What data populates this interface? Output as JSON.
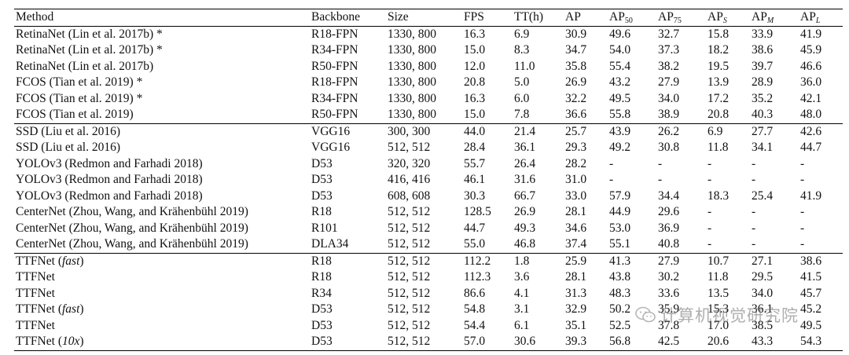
{
  "table": {
    "columns": [
      "Method",
      "Backbone",
      "Size",
      "FPS",
      "TT(h)",
      "AP",
      "AP50",
      "AP75",
      "APS",
      "APM",
      "APL"
    ],
    "header": {
      "method": "Method",
      "backbone": "Backbone",
      "size": "Size",
      "fps": "FPS",
      "tt": "TT(h)",
      "ap": "AP",
      "ap50": {
        "base": "AP",
        "sub": "50"
      },
      "ap75": {
        "base": "AP",
        "sub": "75"
      },
      "aps": {
        "base": "AP",
        "sub": "S"
      },
      "apm": {
        "base": "AP",
        "sub": "M"
      },
      "apl": {
        "base": "AP",
        "sub": "L"
      }
    },
    "groups": [
      [
        {
          "method": "RetinaNet (Lin et al. 2017b) *",
          "backbone": "R18-FPN",
          "size": "1330, 800",
          "fps": "16.3",
          "tt": "6.9",
          "ap": "30.9",
          "ap50": "49.6",
          "ap75": "32.7",
          "aps": "15.8",
          "apm": "33.9",
          "apl": "41.9"
        },
        {
          "method": "RetinaNet (Lin et al. 2017b) *",
          "backbone": "R34-FPN",
          "size": "1330, 800",
          "fps": "15.0",
          "tt": "8.3",
          "ap": "34.7",
          "ap50": "54.0",
          "ap75": "37.3",
          "aps": "18.2",
          "apm": "38.6",
          "apl": "45.9"
        },
        {
          "method": "RetinaNet (Lin et al. 2017b)",
          "backbone": "R50-FPN",
          "size": "1330, 800",
          "fps": "12.0",
          "tt": "11.0",
          "ap": "35.8",
          "ap50": "55.4",
          "ap75": "38.2",
          "aps": "19.5",
          "apm": "39.7",
          "apl": "46.6"
        },
        {
          "method": "FCOS (Tian et al. 2019) *",
          "backbone": "R18-FPN",
          "size": "1330, 800",
          "fps": "20.8",
          "tt": "5.0",
          "ap": "26.9",
          "ap50": "43.2",
          "ap75": "27.9",
          "aps": "13.9",
          "apm": "28.9",
          "apl": "36.0"
        },
        {
          "method": "FCOS (Tian et al. 2019) *",
          "backbone": "R34-FPN",
          "size": "1330, 800",
          "fps": "16.3",
          "tt": "6.0",
          "ap": "32.2",
          "ap50": "49.5",
          "ap75": "34.0",
          "aps": "17.2",
          "apm": "35.2",
          "apl": "42.1"
        },
        {
          "method": "FCOS (Tian et al. 2019)",
          "backbone": "R50-FPN",
          "size": "1330, 800",
          "fps": "15.0",
          "tt": "7.8",
          "ap": "36.6",
          "ap50": "55.8",
          "ap75": "38.9",
          "aps": "20.8",
          "apm": "40.3",
          "apl": "48.0"
        }
      ],
      [
        {
          "method": "SSD (Liu et al. 2016)",
          "backbone": "VGG16",
          "size": "300, 300",
          "fps": "44.0",
          "tt": "21.4",
          "ap": "25.7",
          "ap50": "43.9",
          "ap75": "26.2",
          "aps": "6.9",
          "apm": "27.7",
          "apl": "42.6"
        },
        {
          "method": "SSD (Liu et al. 2016)",
          "backbone": "VGG16",
          "size": "512, 512",
          "fps": "28.4",
          "tt": "36.1",
          "ap": "29.3",
          "ap50": "49.2",
          "ap75": "30.8",
          "aps": "11.8",
          "apm": "34.1",
          "apl": "44.7"
        },
        {
          "method": "YOLOv3 (Redmon and Farhadi 2018)",
          "backbone": "D53",
          "size": "320, 320",
          "fps": "55.7",
          "tt": "26.4",
          "ap": "28.2",
          "ap50": "-",
          "ap75": "-",
          "aps": "-",
          "apm": "-",
          "apl": "-"
        },
        {
          "method": "YOLOv3 (Redmon and Farhadi 2018)",
          "backbone": "D53",
          "size": "416, 416",
          "fps": "46.1",
          "tt": "31.6",
          "ap": "31.0",
          "ap50": "-",
          "ap75": "-",
          "aps": "-",
          "apm": "-",
          "apl": "-"
        },
        {
          "method": "YOLOv3 (Redmon and Farhadi 2018)",
          "backbone": "D53",
          "size": "608, 608",
          "fps": "30.3",
          "tt": "66.7",
          "ap": "33.0",
          "ap50": "57.9",
          "ap75": "34.4",
          "aps": "18.3",
          "apm": "25.4",
          "apl": "41.9"
        },
        {
          "method": "CenterNet (Zhou, Wang, and Krähenbühl 2019)",
          "backbone": "R18",
          "size": "512, 512",
          "fps": "128.5",
          "tt": "26.9",
          "ap": "28.1",
          "ap50": "44.9",
          "ap75": "29.6",
          "aps": "-",
          "apm": "-",
          "apl": "-"
        },
        {
          "method": "CenterNet (Zhou, Wang, and Krähenbühl 2019)",
          "backbone": "R101",
          "size": "512, 512",
          "fps": "44.7",
          "tt": "49.3",
          "ap": "34.6",
          "ap50": "53.0",
          "ap75": "36.9",
          "aps": "-",
          "apm": "-",
          "apl": "-"
        },
        {
          "method": "CenterNet (Zhou, Wang, and Krähenbühl 2019)",
          "backbone": "DLA34",
          "size": "512, 512",
          "fps": "55.0",
          "tt": "46.8",
          "ap": "37.4",
          "ap50": "55.1",
          "ap75": "40.8",
          "aps": "-",
          "apm": "-",
          "apl": "-"
        }
      ],
      [
        {
          "method": "TTFNet",
          "method_note": "fast",
          "backbone": "R18",
          "size": "512, 512",
          "fps": "112.2",
          "tt": "1.8",
          "tt_bold": true,
          "ap": "25.9",
          "ap50": "41.3",
          "ap75": "27.9",
          "aps": "10.7",
          "apm": "27.1",
          "apl": "38.6"
        },
        {
          "method": "TTFNet",
          "backbone": "R18",
          "size": "512, 512",
          "fps": "112.3",
          "tt": "3.6",
          "tt_bold": true,
          "ap": "28.1",
          "ap50": "43.8",
          "ap75": "30.2",
          "aps": "11.8",
          "apm": "29.5",
          "apl": "41.5"
        },
        {
          "method": "TTFNet",
          "backbone": "R34",
          "size": "512, 512",
          "fps": "86.6",
          "tt": "4.1",
          "tt_bold": true,
          "ap": "31.3",
          "ap50": "48.3",
          "ap75": "33.6",
          "aps": "13.5",
          "apm": "34.0",
          "apl": "45.7"
        },
        {
          "method": "TTFNet",
          "method_note": "fast",
          "backbone": "D53",
          "size": "512, 512",
          "fps": "54.8",
          "tt": "3.1",
          "tt_bold": true,
          "ap": "32.9",
          "ap50": "50.2",
          "ap75": "35.9",
          "aps": "15.3",
          "apm": "36.1",
          "apl": "45.2"
        },
        {
          "method": "TTFNet",
          "backbone": "D53",
          "size": "512, 512",
          "fps": "54.4",
          "tt": "6.1",
          "tt_bold": true,
          "ap": "35.1",
          "ap50": "52.5",
          "ap75": "37.8",
          "aps": "17.0",
          "apm": "38.5",
          "apl": "49.5"
        },
        {
          "method": "TTFNet",
          "method_note": "10x",
          "backbone": "D53",
          "size": "512, 512",
          "fps": "57.0",
          "tt": "30.6",
          "ap": "39.3",
          "ap_bold": true,
          "ap50": "56.8",
          "ap75": "42.5",
          "aps": "20.6",
          "apm": "43.3",
          "apl": "54.3"
        }
      ]
    ]
  },
  "watermark": {
    "icon": "wechat-logo-icon",
    "text": "计算机视觉研究院"
  }
}
